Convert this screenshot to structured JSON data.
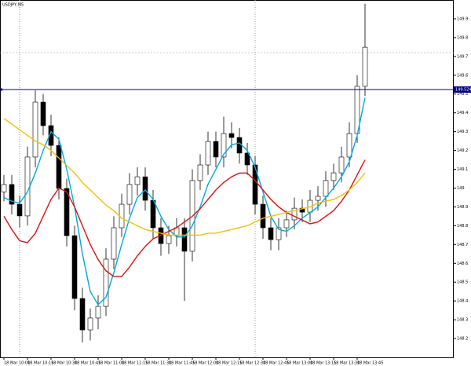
{
  "chart_data": {
    "type": "candlestick",
    "title": "USDJPY,M5",
    "categories": [
      "18 Mar 10:00",
      null,
      null,
      "18 Mar 10:15",
      null,
      null,
      "18 Mar 10:30",
      null,
      null,
      "18 Mar 10:45",
      null,
      null,
      "18 Mar 11:00",
      null,
      null,
      "18 Mar 11:15",
      null,
      null,
      "18 Mar 11:30",
      null,
      null,
      "18 Mar 11:45",
      null,
      null,
      "18 Mar 12:00",
      null,
      null,
      "18 Mar 12:15",
      null,
      null,
      "18 Mar 12:30",
      null,
      null,
      "18 Mar 12:45",
      null,
      null,
      "18 Mar 13:00",
      null,
      null,
      "18 Mar 13:15",
      null,
      null,
      "18 Mar 13:30",
      null,
      null,
      "18 Mar 13:45",
      null
    ],
    "open": [
      148.98,
      149.019,
      148.914,
      148.852,
      149.165,
      149.457,
      149.332,
      149.227,
      148.998,
      148.747,
      148.413,
      148.246,
      148.309,
      148.371,
      148.622,
      148.789,
      148.914,
      149.019,
      149.06,
      148.935,
      148.789,
      148.705,
      148.747,
      148.789,
      148.664,
      149.04,
      149.123,
      149.248,
      149.165,
      149.29,
      149.269,
      149.186,
      149.123,
      148.914,
      148.789,
      148.726,
      148.789,
      148.831,
      148.893,
      148.872,
      148.935,
      148.956,
      149.04,
      149.081,
      149.165,
      149.29,
      149.541
    ],
    "high": [
      149.07,
      149.07,
      148.96,
      149.22,
      149.52,
      149.5,
      149.39,
      149.27,
      149.05,
      148.8,
      148.47,
      148.36,
      148.43,
      148.68,
      148.85,
      148.97,
      149.08,
      149.11,
      149.11,
      148.99,
      148.84,
      148.8,
      148.84,
      148.84,
      149.1,
      149.18,
      149.3,
      149.3,
      149.38,
      149.35,
      149.32,
      149.24,
      149.17,
      148.96,
      148.84,
      148.84,
      148.88,
      148.95,
      148.94,
      148.99,
      149.01,
      149.09,
      149.13,
      149.22,
      149.35,
      149.6,
      149.98
    ],
    "low": [
      148.93,
      148.86,
      148.79,
      148.8,
      149.11,
      149.28,
      149.17,
      148.94,
      148.69,
      148.35,
      148.18,
      148.19,
      148.25,
      148.32,
      148.57,
      148.74,
      148.86,
      148.96,
      148.88,
      148.73,
      148.64,
      148.65,
      148.69,
      148.4,
      148.61,
      148.99,
      149.07,
      149.11,
      149.11,
      149.21,
      149.13,
      149.07,
      148.86,
      148.73,
      148.67,
      148.67,
      148.74,
      148.78,
      148.82,
      148.82,
      148.88,
      148.9,
      148.99,
      149.03,
      149.11,
      149.24,
      149.49
    ],
    "close": [
      149.019,
      148.914,
      148.852,
      149.165,
      149.457,
      149.332,
      149.227,
      148.998,
      148.747,
      148.413,
      148.246,
      148.309,
      148.371,
      148.622,
      148.789,
      148.914,
      149.019,
      149.06,
      148.935,
      148.789,
      148.705,
      148.747,
      148.789,
      148.664,
      149.04,
      149.123,
      149.248,
      149.165,
      149.29,
      149.269,
      149.186,
      149.123,
      148.914,
      148.789,
      148.726,
      148.789,
      148.831,
      148.893,
      148.872,
      148.935,
      148.956,
      149.04,
      149.081,
      149.165,
      149.29,
      149.541,
      149.749
    ],
    "up_color": "#ffffff",
    "down_color": "#000000",
    "series": [
      {
        "color": "#00aadd",
        "values": [
          148.95,
          148.93,
          148.92,
          148.98,
          149.08,
          149.2,
          149.3,
          149.26,
          149.1,
          148.9,
          148.65,
          148.45,
          148.38,
          148.42,
          148.55,
          148.7,
          148.84,
          148.95,
          148.99,
          148.94,
          148.85,
          148.78,
          148.74,
          148.74,
          148.8,
          148.9,
          149.02,
          149.1,
          149.18,
          149.23,
          149.24,
          149.2,
          149.11,
          148.98,
          148.85,
          148.78,
          148.77,
          148.8,
          148.84,
          148.87,
          148.9,
          148.95,
          149.0,
          149.06,
          149.14,
          149.28,
          149.48
        ]
      },
      {
        "color": "#dd1111",
        "values": [
          148.85,
          148.78,
          148.72,
          148.71,
          148.76,
          148.85,
          148.94,
          149.0,
          148.98,
          148.9,
          148.8,
          148.7,
          148.62,
          148.56,
          148.53,
          148.53,
          148.58,
          148.64,
          148.69,
          148.73,
          148.75,
          148.77,
          148.79,
          148.82,
          148.85,
          148.89,
          148.94,
          148.99,
          149.03,
          149.06,
          149.08,
          149.08,
          149.04,
          148.99,
          148.94,
          148.9,
          148.87,
          148.85,
          148.83,
          148.81,
          148.82,
          148.85,
          148.88,
          148.93,
          148.99,
          149.07,
          149.15
        ]
      },
      {
        "color": "#f5c000",
        "values": [
          149.37,
          149.34,
          149.31,
          149.28,
          149.25,
          149.23,
          149.2,
          149.16,
          149.12,
          149.08,
          149.03,
          148.99,
          148.95,
          148.91,
          148.88,
          148.84,
          148.82,
          148.8,
          148.78,
          148.77,
          148.76,
          148.75,
          148.75,
          148.75,
          148.75,
          148.75,
          148.76,
          148.76,
          148.77,
          148.78,
          148.79,
          148.8,
          148.82,
          148.84,
          148.85,
          148.86,
          148.87,
          148.88,
          148.89,
          148.9,
          148.92,
          148.93,
          148.94,
          148.96,
          148.99,
          149.03,
          149.08
        ]
      }
    ],
    "ylim": [
      148.1,
      150.0
    ],
    "yticks": [
      148.2,
      148.3,
      148.4,
      148.5,
      148.6,
      148.7,
      148.8,
      148.9,
      149.0,
      149.1,
      149.2,
      149.3,
      149.4,
      149.5,
      149.6,
      149.7,
      149.8,
      149.9
    ],
    "hline": 149.524,
    "hline_color": "#000080",
    "bid_line": 149.72
  }
}
